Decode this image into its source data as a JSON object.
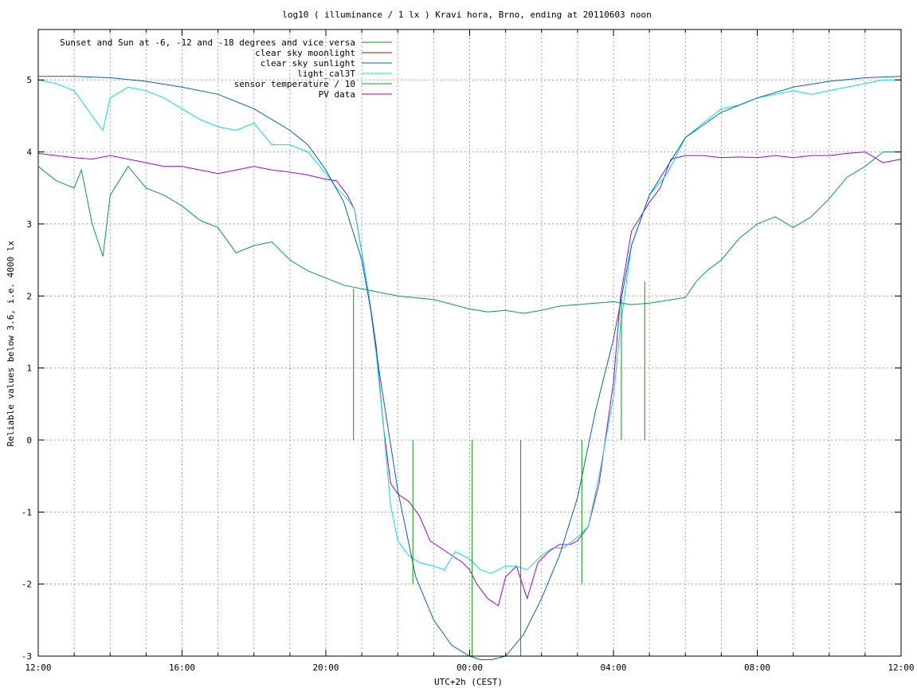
{
  "chart_data": {
    "type": "line",
    "title": "log10 ( illuminance / 1 lx ) Kravi hora, Brno, ending at 20110603 noon",
    "xlabel": "UTC+2h (CEST)",
    "ylabel": "Reliable values below 3.6, i.e. 4000 lx",
    "xlim": [
      0,
      24
    ],
    "ylim": [
      -3,
      5.7
    ],
    "x_ticks": [
      {
        "value": 0,
        "label": "12:00"
      },
      {
        "value": 4,
        "label": "16:00"
      },
      {
        "value": 8,
        "label": "20:00"
      },
      {
        "value": 12,
        "label": "00:00"
      },
      {
        "value": 16,
        "label": "04:00"
      },
      {
        "value": 20,
        "label": "08:00"
      },
      {
        "value": 24,
        "label": "12:00"
      }
    ],
    "x_minor_step": 1,
    "y_ticks": [
      -3,
      -2,
      -1,
      0,
      1,
      2,
      3,
      4,
      5
    ],
    "grid": true,
    "legend_position": "top-left",
    "series": [
      {
        "name": "Sunset and Sun at -6, -12 and -18 degrees and vice versa",
        "color": "#00a000",
        "style": "impulses",
        "impulses": [
          {
            "x": 8.77,
            "y": 2.1
          },
          {
            "x": 10.42,
            "y": -2.0
          },
          {
            "x": 12.07,
            "y": -3.0
          },
          {
            "x": 13.42,
            "y": -3.0
          },
          {
            "x": 15.12,
            "y": -2.0
          },
          {
            "x": 16.22,
            "y": 2.0
          },
          {
            "x": 16.87,
            "y": 2.2
          }
        ]
      },
      {
        "name": "clear sky moonlight",
        "color": "#c00000",
        "x": [],
        "y": []
      },
      {
        "name": "clear sky sunlight",
        "color": "#0060c0",
        "x": [
          0,
          1,
          2,
          3,
          4,
          5,
          6,
          7,
          7.5,
          8,
          8.5,
          9,
          9.25,
          9.5,
          10,
          10.5,
          11,
          11.5,
          12,
          12.3,
          12.6,
          13,
          13.5,
          14,
          14.5,
          15,
          15.5,
          16,
          16.5,
          17,
          17.5,
          18,
          19,
          20,
          21,
          22,
          23,
          24
        ],
        "y": [
          5.05,
          5.05,
          5.03,
          4.98,
          4.9,
          4.8,
          4.6,
          4.3,
          4.1,
          3.75,
          3.3,
          2.5,
          1.8,
          0.9,
          -0.7,
          -1.9,
          -2.5,
          -2.85,
          -3.0,
          -3.05,
          -3.05,
          -3.0,
          -2.7,
          -2.2,
          -1.6,
          -0.8,
          0.4,
          1.4,
          2.7,
          3.4,
          3.8,
          4.2,
          4.55,
          4.75,
          4.9,
          4.98,
          5.03,
          5.05
        ]
      },
      {
        "name": "light_cal3T",
        "color": "#00e0e0",
        "x": [
          0,
          0.5,
          1,
          1.5,
          1.8,
          2,
          2.5,
          3,
          3.5,
          4,
          4.5,
          5,
          5.5,
          6,
          6.5,
          7,
          7.5,
          8,
          8.3,
          8.6,
          8.8,
          9,
          9.2,
          9.4,
          9.6,
          9.8,
          10,
          10.3,
          10.6,
          11,
          11.3,
          11.6,
          12,
          12.3,
          12.6,
          13,
          13.3,
          13.6,
          14,
          14.3,
          14.6,
          15,
          15.3,
          15.6,
          16,
          16.2,
          16.5,
          17,
          17.5,
          18,
          18.5,
          19,
          19.5,
          20,
          20.5,
          21,
          21.5,
          22,
          22.5,
          23,
          23.5,
          24
        ],
        "y": [
          5.0,
          4.95,
          4.85,
          4.5,
          4.3,
          4.75,
          4.9,
          4.85,
          4.75,
          4.6,
          4.45,
          4.35,
          4.3,
          4.4,
          4.1,
          4.1,
          4.0,
          3.7,
          3.5,
          3.35,
          3.2,
          2.6,
          2.0,
          1.2,
          0.2,
          -0.9,
          -1.4,
          -1.6,
          -1.7,
          -1.75,
          -1.8,
          -1.55,
          -1.65,
          -1.8,
          -1.85,
          -1.75,
          -1.75,
          -1.8,
          -1.6,
          -1.5,
          -1.5,
          -1.35,
          -1.2,
          -0.5,
          0.6,
          1.6,
          2.7,
          3.4,
          3.7,
          4.2,
          4.4,
          4.6,
          4.65,
          4.75,
          4.8,
          4.85,
          4.8,
          4.85,
          4.9,
          4.95,
          5.0,
          5.0
        ]
      },
      {
        "name": "sensor temperature / 10",
        "color": "#00a040",
        "x": [
          0,
          0.5,
          1,
          1.2,
          1.5,
          1.8,
          2,
          2.5,
          3,
          3.5,
          4,
          4.5,
          5,
          5.5,
          6,
          6.5,
          7,
          7.5,
          8,
          8.5,
          9,
          10,
          11,
          12,
          12.5,
          13,
          13.5,
          14,
          14.5,
          15,
          15.5,
          16,
          16.5,
          17,
          17.5,
          18,
          18.3,
          18.6,
          19,
          19.5,
          20,
          20.5,
          21,
          21.5,
          22,
          22.5,
          23,
          23.5,
          24
        ],
        "y": [
          3.8,
          3.6,
          3.5,
          3.75,
          3.0,
          2.55,
          3.4,
          3.8,
          3.5,
          3.4,
          3.25,
          3.05,
          2.95,
          2.6,
          2.7,
          2.75,
          2.5,
          2.35,
          2.25,
          2.15,
          2.1,
          2.0,
          1.95,
          1.82,
          1.78,
          1.8,
          1.76,
          1.8,
          1.86,
          1.88,
          1.9,
          1.92,
          1.88,
          1.9,
          1.94,
          1.98,
          2.2,
          2.35,
          2.5,
          2.8,
          3.0,
          3.1,
          2.95,
          3.1,
          3.35,
          3.65,
          3.8,
          4.0,
          4.0
        ]
      },
      {
        "name": "PV data",
        "color": "#a000e0",
        "x": [
          0,
          0.5,
          1,
          1.5,
          2,
          2.5,
          3,
          3.5,
          4,
          4.5,
          5,
          5.5,
          6,
          6.5,
          7,
          7.5,
          8,
          8.3,
          8.6,
          8.8,
          9,
          9.2,
          9.4,
          9.6,
          9.8,
          10,
          10.3,
          10.6,
          10.9,
          11.2,
          11.5,
          11.8,
          12,
          12.2,
          12.5,
          12.8,
          13,
          13.3,
          13.6,
          13.9,
          14.2,
          14.5,
          14.8,
          15,
          15.3,
          15.6,
          16,
          16.2,
          16.5,
          17,
          17.3,
          17.6,
          18,
          18.5,
          19,
          19.5,
          20,
          20.5,
          21,
          21.5,
          22,
          22.5,
          23,
          23.5,
          24
        ],
        "y": [
          3.98,
          3.95,
          3.92,
          3.9,
          3.95,
          3.9,
          3.85,
          3.8,
          3.8,
          3.75,
          3.7,
          3.75,
          3.8,
          3.75,
          3.72,
          3.68,
          3.62,
          3.6,
          3.4,
          3.2,
          2.6,
          2.0,
          1.3,
          0.2,
          -0.6,
          -0.75,
          -0.85,
          -1.05,
          -1.4,
          -1.5,
          -1.6,
          -1.7,
          -1.8,
          -2.0,
          -2.2,
          -2.3,
          -1.9,
          -1.75,
          -2.2,
          -1.7,
          -1.55,
          -1.45,
          -1.45,
          -1.4,
          -1.2,
          -0.6,
          0.8,
          2.0,
          2.9,
          3.3,
          3.5,
          3.9,
          3.95,
          3.95,
          3.92,
          3.93,
          3.92,
          3.95,
          3.92,
          3.95,
          3.95,
          3.98,
          4.0,
          3.85,
          3.9
        ]
      }
    ]
  }
}
